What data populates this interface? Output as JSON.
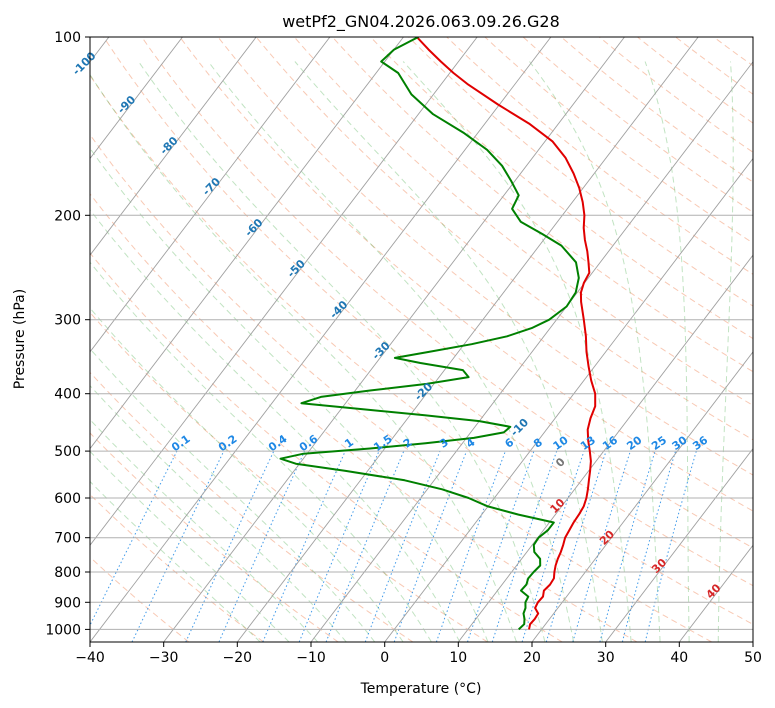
{
  "chart_data": {
    "type": "line",
    "title": "wetPf2_GN04.2026.063.09.26.G28",
    "xlabel": "Temperature (°C)",
    "ylabel": "Pressure (hPa)",
    "xlim": [
      -40,
      50
    ],
    "ylim": [
      1050,
      100
    ],
    "yscale": "log",
    "grid": true,
    "x_ticks": [
      -40,
      -30,
      -20,
      -10,
      0,
      10,
      20,
      30,
      40,
      50
    ],
    "y_ticks": [
      100,
      200,
      300,
      400,
      500,
      600,
      700,
      800,
      900,
      1000
    ],
    "skew_T_isotherm_labels": [
      "-100",
      "-90",
      "-80",
      "-70",
      "-60",
      "-50",
      "-40",
      "-30",
      "-20",
      "-10",
      "0",
      "10",
      "20",
      "30",
      "40"
    ],
    "mixing_ratio_labels": [
      "0.1",
      "0.2",
      "0.4",
      "0.6",
      "1",
      "1.5",
      "2",
      "3",
      "4",
      "6",
      "8",
      "10",
      "13",
      "16",
      "20",
      "25",
      "30",
      "36"
    ],
    "series": [
      {
        "role": "temperature",
        "color": "#e00000",
        "points": [
          [
            1000,
            18.3
          ],
          [
            980,
            17.9
          ],
          [
            960,
            18.0
          ],
          [
            940,
            17.9
          ],
          [
            920,
            16.9
          ],
          [
            900,
            16.7
          ],
          [
            880,
            16.8
          ],
          [
            860,
            16.3
          ],
          [
            840,
            16.5
          ],
          [
            820,
            16.4
          ],
          [
            800,
            15.8
          ],
          [
            780,
            15.3
          ],
          [
            760,
            14.9
          ],
          [
            740,
            14.6
          ],
          [
            720,
            14.2
          ],
          [
            700,
            13.7
          ],
          [
            680,
            13.5
          ],
          [
            660,
            13.3
          ],
          [
            640,
            13.2
          ],
          [
            620,
            13.0
          ],
          [
            600,
            12.5
          ],
          [
            580,
            11.8
          ],
          [
            560,
            11.0
          ],
          [
            540,
            10.2
          ],
          [
            520,
            9.3
          ],
          [
            500,
            8.1
          ],
          [
            480,
            6.8
          ],
          [
            460,
            5.6
          ],
          [
            440,
            4.8
          ],
          [
            420,
            4.2
          ],
          [
            400,
            2.9
          ],
          [
            380,
            1.0
          ],
          [
            360,
            -0.8
          ],
          [
            340,
            -2.6
          ],
          [
            320,
            -4.3
          ],
          [
            300,
            -6.3
          ],
          [
            280,
            -8.5
          ],
          [
            270,
            -9.5
          ],
          [
            260,
            -10.1
          ],
          [
            250,
            -10.4
          ],
          [
            240,
            -11.6
          ],
          [
            230,
            -12.9
          ],
          [
            220,
            -14.4
          ],
          [
            210,
            -15.8
          ],
          [
            200,
            -17.0
          ],
          [
            190,
            -18.6
          ],
          [
            180,
            -20.5
          ],
          [
            170,
            -22.8
          ],
          [
            160,
            -25.5
          ],
          [
            150,
            -29.0
          ],
          [
            140,
            -34.0
          ],
          [
            130,
            -40.2
          ],
          [
            120,
            -46.5
          ],
          [
            115,
            -49.5
          ],
          [
            110,
            -52.4
          ],
          [
            105,
            -55.3
          ],
          [
            100,
            -58.2
          ]
        ]
      },
      {
        "role": "dewpoint",
        "color": "#008000",
        "points": [
          [
            1000,
            16.9
          ],
          [
            980,
            17.1
          ],
          [
            960,
            16.6
          ],
          [
            940,
            15.9
          ],
          [
            920,
            15.6
          ],
          [
            900,
            15.0
          ],
          [
            880,
            14.8
          ],
          [
            860,
            13.2
          ],
          [
            840,
            13.3
          ],
          [
            820,
            12.9
          ],
          [
            800,
            13.0
          ],
          [
            780,
            13.2
          ],
          [
            760,
            12.5
          ],
          [
            740,
            11.0
          ],
          [
            720,
            10.2
          ],
          [
            700,
            10.1
          ],
          [
            680,
            10.6
          ],
          [
            660,
            10.6
          ],
          [
            640,
            5.0
          ],
          [
            620,
            0.0
          ],
          [
            600,
            -3.5
          ],
          [
            580,
            -8.0
          ],
          [
            560,
            -14.0
          ],
          [
            540,
            -23.0
          ],
          [
            525,
            -30.5
          ],
          [
            515,
            -33.1
          ],
          [
            505,
            -30.5
          ],
          [
            495,
            -22.0
          ],
          [
            485,
            -15.0
          ],
          [
            475,
            -9.0
          ],
          [
            465,
            -5.5
          ],
          [
            455,
            -5.2
          ],
          [
            445,
            -10.0
          ],
          [
            435,
            -18.0
          ],
          [
            425,
            -27.0
          ],
          [
            415,
            -36.0
          ],
          [
            405,
            -34.0
          ],
          [
            395,
            -28.0
          ],
          [
            385,
            -21.0
          ],
          [
            375,
            -16.0
          ],
          [
            365,
            -17.5
          ],
          [
            355,
            -24.0
          ],
          [
            348,
            -28.0
          ],
          [
            340,
            -24.0
          ],
          [
            330,
            -19.0
          ],
          [
            320,
            -15.0
          ],
          [
            310,
            -12.5
          ],
          [
            300,
            -11.0
          ],
          [
            285,
            -10.0
          ],
          [
            270,
            -10.2
          ],
          [
            255,
            -11.3
          ],
          [
            240,
            -13.3
          ],
          [
            225,
            -17.0
          ],
          [
            215,
            -20.8
          ],
          [
            205,
            -25.0
          ],
          [
            195,
            -27.5
          ],
          [
            185,
            -28.0
          ],
          [
            175,
            -30.5
          ],
          [
            165,
            -33.3
          ],
          [
            155,
            -37.0
          ],
          [
            145,
            -42.0
          ],
          [
            135,
            -48.0
          ],
          [
            125,
            -53.0
          ],
          [
            115,
            -57.0
          ],
          [
            110,
            -60.5
          ],
          [
            105,
            -60.0
          ],
          [
            100,
            -58.0
          ]
        ]
      }
    ]
  }
}
